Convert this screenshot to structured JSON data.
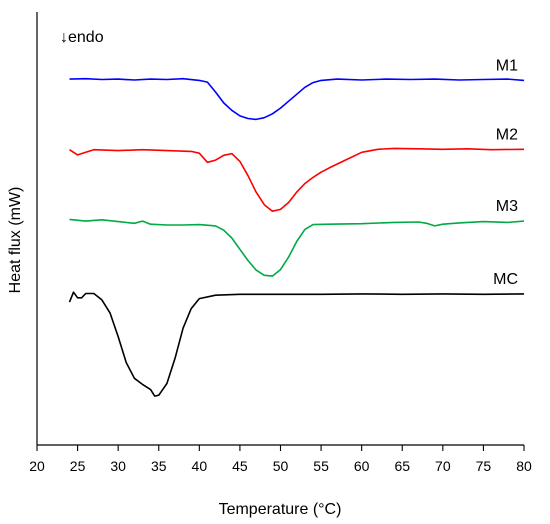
{
  "chart_data": {
    "type": "line",
    "title": "",
    "xlabel": "Temperature (°C)",
    "ylabel": "Heat flux (mW)",
    "annotation": "↓endo",
    "xlim": [
      20,
      80
    ],
    "xticks": [
      20,
      25,
      30,
      35,
      40,
      45,
      50,
      55,
      60,
      65,
      70,
      75,
      80
    ],
    "ylim": [
      0,
      100
    ],
    "grid": false,
    "legend": "none",
    "series": [
      {
        "name": "M1",
        "color": "#0000ff",
        "points": [
          [
            24,
            84.5
          ],
          [
            26,
            84.6
          ],
          [
            28,
            84.4
          ],
          [
            30,
            84.5
          ],
          [
            32,
            84.3
          ],
          [
            34,
            84.5
          ],
          [
            36,
            84.4
          ],
          [
            38,
            84.6
          ],
          [
            40,
            84.2
          ],
          [
            41,
            83.8
          ],
          [
            42,
            81.5
          ],
          [
            43,
            79.0
          ],
          [
            44,
            77.3
          ],
          [
            45,
            76.0
          ],
          [
            46,
            75.4
          ],
          [
            47,
            75.2
          ],
          [
            48,
            75.6
          ],
          [
            49,
            76.5
          ],
          [
            50,
            77.8
          ],
          [
            51,
            79.4
          ],
          [
            52,
            81.0
          ],
          [
            53,
            82.6
          ],
          [
            54,
            83.7
          ],
          [
            55,
            84.2
          ],
          [
            57,
            84.5
          ],
          [
            60,
            84.3
          ],
          [
            63,
            84.5
          ],
          [
            66,
            84.4
          ],
          [
            69,
            84.5
          ],
          [
            72,
            84.3
          ],
          [
            75,
            84.4
          ],
          [
            78,
            84.5
          ],
          [
            80,
            84.2
          ]
        ]
      },
      {
        "name": "M2",
        "color": "#ff0000",
        "points": [
          [
            24,
            68.2
          ],
          [
            25,
            67.0
          ],
          [
            26,
            67.6
          ],
          [
            27,
            68.2
          ],
          [
            30,
            68.0
          ],
          [
            33,
            68.2
          ],
          [
            36,
            68.0
          ],
          [
            39,
            67.8
          ],
          [
            40,
            67.4
          ],
          [
            41,
            65.3
          ],
          [
            42,
            65.8
          ],
          [
            43,
            66.9
          ],
          [
            44,
            67.3
          ],
          [
            45,
            65.5
          ],
          [
            46,
            62.2
          ],
          [
            47,
            58.4
          ],
          [
            48,
            55.5
          ],
          [
            49,
            54.0
          ],
          [
            50,
            54.4
          ],
          [
            51,
            56.0
          ],
          [
            52,
            58.4
          ],
          [
            53,
            60.4
          ],
          [
            54,
            61.8
          ],
          [
            55,
            63.0
          ],
          [
            56,
            64.0
          ],
          [
            58,
            65.8
          ],
          [
            60,
            67.6
          ],
          [
            62,
            68.3
          ],
          [
            64,
            68.5
          ],
          [
            67,
            68.4
          ],
          [
            70,
            68.3
          ],
          [
            73,
            68.4
          ],
          [
            76,
            68.2
          ],
          [
            80,
            68.3
          ]
        ]
      },
      {
        "name": "M3",
        "color": "#00aa44",
        "points": [
          [
            24,
            52.1
          ],
          [
            26,
            51.7
          ],
          [
            28,
            52.0
          ],
          [
            30,
            51.6
          ],
          [
            32,
            51.2
          ],
          [
            33,
            51.7
          ],
          [
            34,
            51.0
          ],
          [
            36,
            50.8
          ],
          [
            38,
            50.8
          ],
          [
            40,
            50.9
          ],
          [
            42,
            50.6
          ],
          [
            43,
            49.6
          ],
          [
            44,
            47.8
          ],
          [
            45,
            45.2
          ],
          [
            46,
            42.6
          ],
          [
            47,
            40.4
          ],
          [
            48,
            39.2
          ],
          [
            49,
            39.0
          ],
          [
            50,
            40.5
          ],
          [
            51,
            43.4
          ],
          [
            52,
            47.0
          ],
          [
            53,
            49.8
          ],
          [
            54,
            50.9
          ],
          [
            56,
            51.0
          ],
          [
            60,
            51.1
          ],
          [
            64,
            51.4
          ],
          [
            67,
            51.5
          ],
          [
            68,
            51.2
          ],
          [
            69,
            50.6
          ],
          [
            70,
            51.0
          ],
          [
            72,
            51.3
          ],
          [
            75,
            51.6
          ],
          [
            78,
            51.4
          ],
          [
            80,
            51.7
          ]
        ]
      },
      {
        "name": "MC",
        "color": "#000000",
        "points": [
          [
            24,
            33.0
          ],
          [
            24.5,
            35.3
          ],
          [
            25,
            34.0
          ],
          [
            25.5,
            34.0
          ],
          [
            26,
            35.0
          ],
          [
            27,
            35.0
          ],
          [
            28,
            33.5
          ],
          [
            29,
            30.5
          ],
          [
            30,
            25.0
          ],
          [
            31,
            19.0
          ],
          [
            32,
            15.4
          ],
          [
            33,
            14.0
          ],
          [
            34,
            12.8
          ],
          [
            34.5,
            11.3
          ],
          [
            35,
            11.5
          ],
          [
            36,
            14.2
          ],
          [
            37,
            20.0
          ],
          [
            38,
            27.0
          ],
          [
            39,
            31.5
          ],
          [
            40,
            33.8
          ],
          [
            42,
            34.6
          ],
          [
            45,
            34.8
          ],
          [
            50,
            34.8
          ],
          [
            55,
            34.8
          ],
          [
            60,
            34.9
          ],
          [
            65,
            34.8
          ],
          [
            70,
            34.9
          ],
          [
            75,
            34.8
          ],
          [
            80,
            34.9
          ]
        ]
      }
    ]
  }
}
